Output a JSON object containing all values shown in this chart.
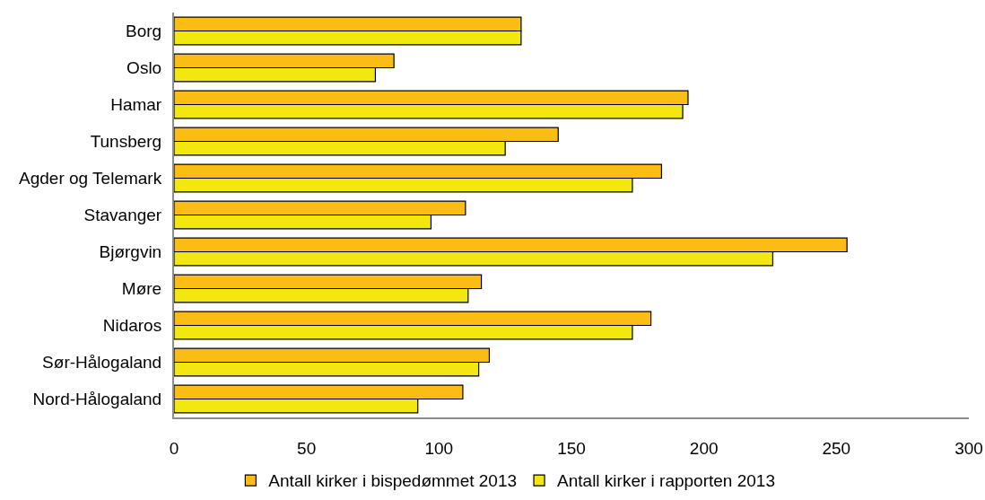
{
  "chart_data": {
    "type": "bar",
    "orientation": "horizontal",
    "categories": [
      "Borg",
      "Oslo",
      "Hamar",
      "Tunsberg",
      "Agder og Telemark",
      "Stavanger",
      "Bjørgvin",
      "Møre",
      "Nidaros",
      "Sør-Hålogaland",
      "Nord-Hålogaland"
    ],
    "series": [
      {
        "name": "Antall kirker i bispedømmet 2013",
        "color": "#fbbc14",
        "values": [
          131,
          83,
          194,
          145,
          184,
          110,
          254,
          116,
          180,
          119,
          109
        ]
      },
      {
        "name": "Antall kirker i rapporten 2013",
        "color": "#f2e70f",
        "values": [
          131,
          76,
          192,
          125,
          173,
          97,
          226,
          111,
          173,
          115,
          92
        ]
      }
    ],
    "xlim": [
      0,
      300
    ],
    "xticks": [
      0,
      50,
      100,
      150,
      200,
      250,
      300
    ],
    "grid": false,
    "legend": "bottom"
  }
}
